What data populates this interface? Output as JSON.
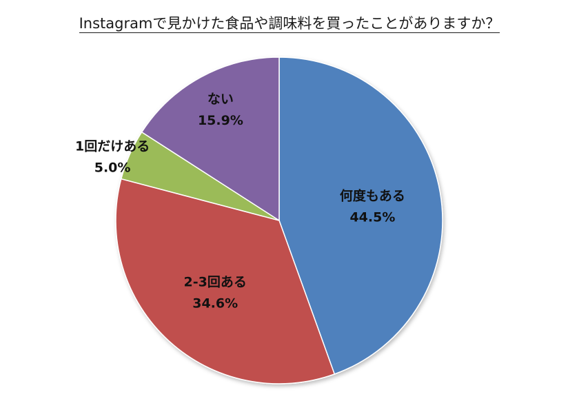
{
  "chart_data": {
    "type": "pie",
    "title": "Instagramで見かけた食品や調味料を買ったことがありますか？",
    "slices": [
      {
        "label": "何度もある",
        "value": 44.5,
        "value_label": "44.5%",
        "color": "#4F81BD"
      },
      {
        "label": "2-3回ある",
        "value": 34.6,
        "value_label": "34.6%",
        "color": "#C0504D"
      },
      {
        "label": "1回だけある",
        "value": 5.0,
        "value_label": "5.0%",
        "color": "#9BBB59"
      },
      {
        "label": "ない",
        "value": 15.9,
        "value_label": "15.9%",
        "color": "#8064A2"
      }
    ],
    "start_angle": "12 o'clock",
    "direction": "clockwise",
    "legend": "none"
  }
}
